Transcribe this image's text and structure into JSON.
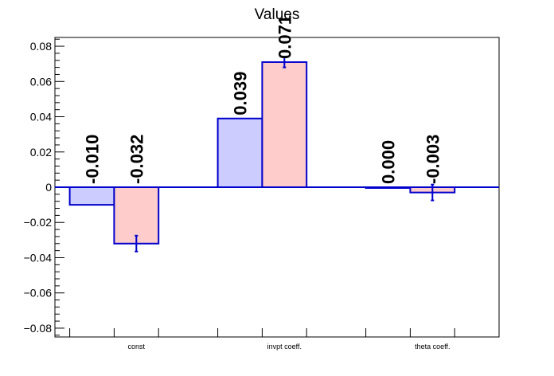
{
  "chart_data": {
    "type": "bar",
    "title": "Values",
    "xlabel": "",
    "ylabel": "",
    "categories": [
      "const",
      "invpt coeff.",
      "theta coeff."
    ],
    "ylim": [
      -0.085,
      0.085
    ],
    "yticks": [
      -0.08,
      -0.06,
      -0.04,
      -0.02,
      0,
      0.02,
      0.04,
      0.06,
      0.08
    ],
    "ytick_labels": [
      "−0.08",
      "−0.06",
      "−0.04",
      "−0.02",
      "0",
      "0.02",
      "0.04",
      "0.06",
      "0.08"
    ],
    "grid": false,
    "legend": "none",
    "series": [
      {
        "values": [
          -0.01,
          0.039,
          0.0
        ],
        "errors": [
          0,
          0,
          0
        ],
        "labels": [
          "-0.010",
          "0.039",
          "0.000"
        ],
        "fill": "#ccccff",
        "stroke": "#0000cc"
      },
      {
        "values": [
          -0.032,
          0.071,
          -0.003
        ],
        "errors": [
          0.0045,
          0.003,
          0.0045
        ],
        "labels": [
          "-0.032",
          "0.071",
          "-0.003"
        ],
        "fill": "#ffcccc",
        "stroke": "#0000cc"
      }
    ]
  }
}
